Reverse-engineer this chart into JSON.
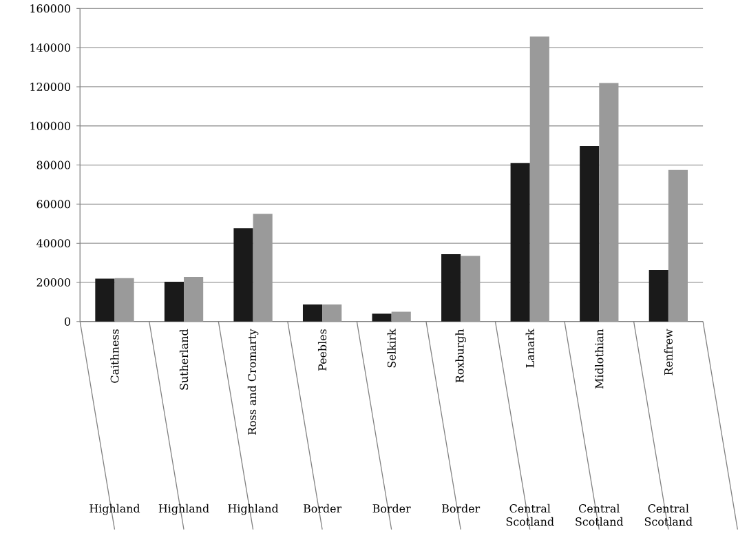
{
  "chart_data": {
    "type": "bar",
    "categories": [
      "Caithness",
      "Sutherland",
      "Ross and Cromarty",
      "Peebles",
      "Selkirk",
      "Roxburgh",
      "Lanark",
      "Midlothian",
      "Renfrew"
    ],
    "series": [
      {
        "color": "#1a1a1a",
        "values": [
          21900,
          20300,
          47700,
          8700,
          4000,
          34400,
          81000,
          89700,
          26300
        ]
      },
      {
        "color": "#9a9a9a",
        "values": [
          22200,
          22800,
          55000,
          8700,
          5000,
          33500,
          145700,
          121900,
          77500
        ]
      }
    ],
    "annotations": [
      "Highland",
      "Highland",
      "Highland",
      "Border",
      "Border",
      "Border",
      "Central Scotland",
      "Central Scotland",
      "Central Scotland"
    ],
    "ylim": [
      0,
      160000
    ],
    "yticks": [
      0,
      20000,
      40000,
      60000,
      80000,
      100000,
      120000,
      140000,
      160000
    ],
    "grid": "y"
  }
}
